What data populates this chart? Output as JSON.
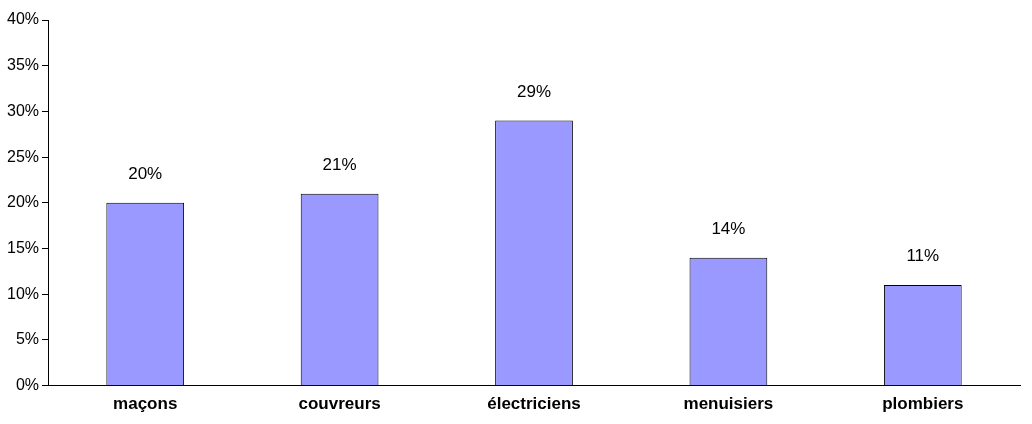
{
  "chart_data": {
    "type": "bar",
    "categories": [
      "maçons",
      "couvreurs",
      "électriciens",
      "menuisiers",
      "plombiers"
    ],
    "values": [
      20,
      21,
      29,
      14,
      11
    ],
    "color": "#9999ff",
    "value_labels": [
      "20%",
      "21%",
      "29%",
      "14%",
      "11%"
    ],
    "ylim": [
      0,
      40
    ],
    "yticks": [
      {
        "value": 0,
        "label": "0%"
      },
      {
        "value": 5,
        "label": "5%"
      },
      {
        "value": 10,
        "label": "10%"
      },
      {
        "value": 15,
        "label": "15%"
      },
      {
        "value": 20,
        "label": "20%"
      },
      {
        "value": 25,
        "label": "25%"
      },
      {
        "value": 30,
        "label": "30%"
      },
      {
        "value": 35,
        "label": "35%"
      },
      {
        "value": 40,
        "label": "40%"
      }
    ],
    "grid": false,
    "legend": false
  }
}
